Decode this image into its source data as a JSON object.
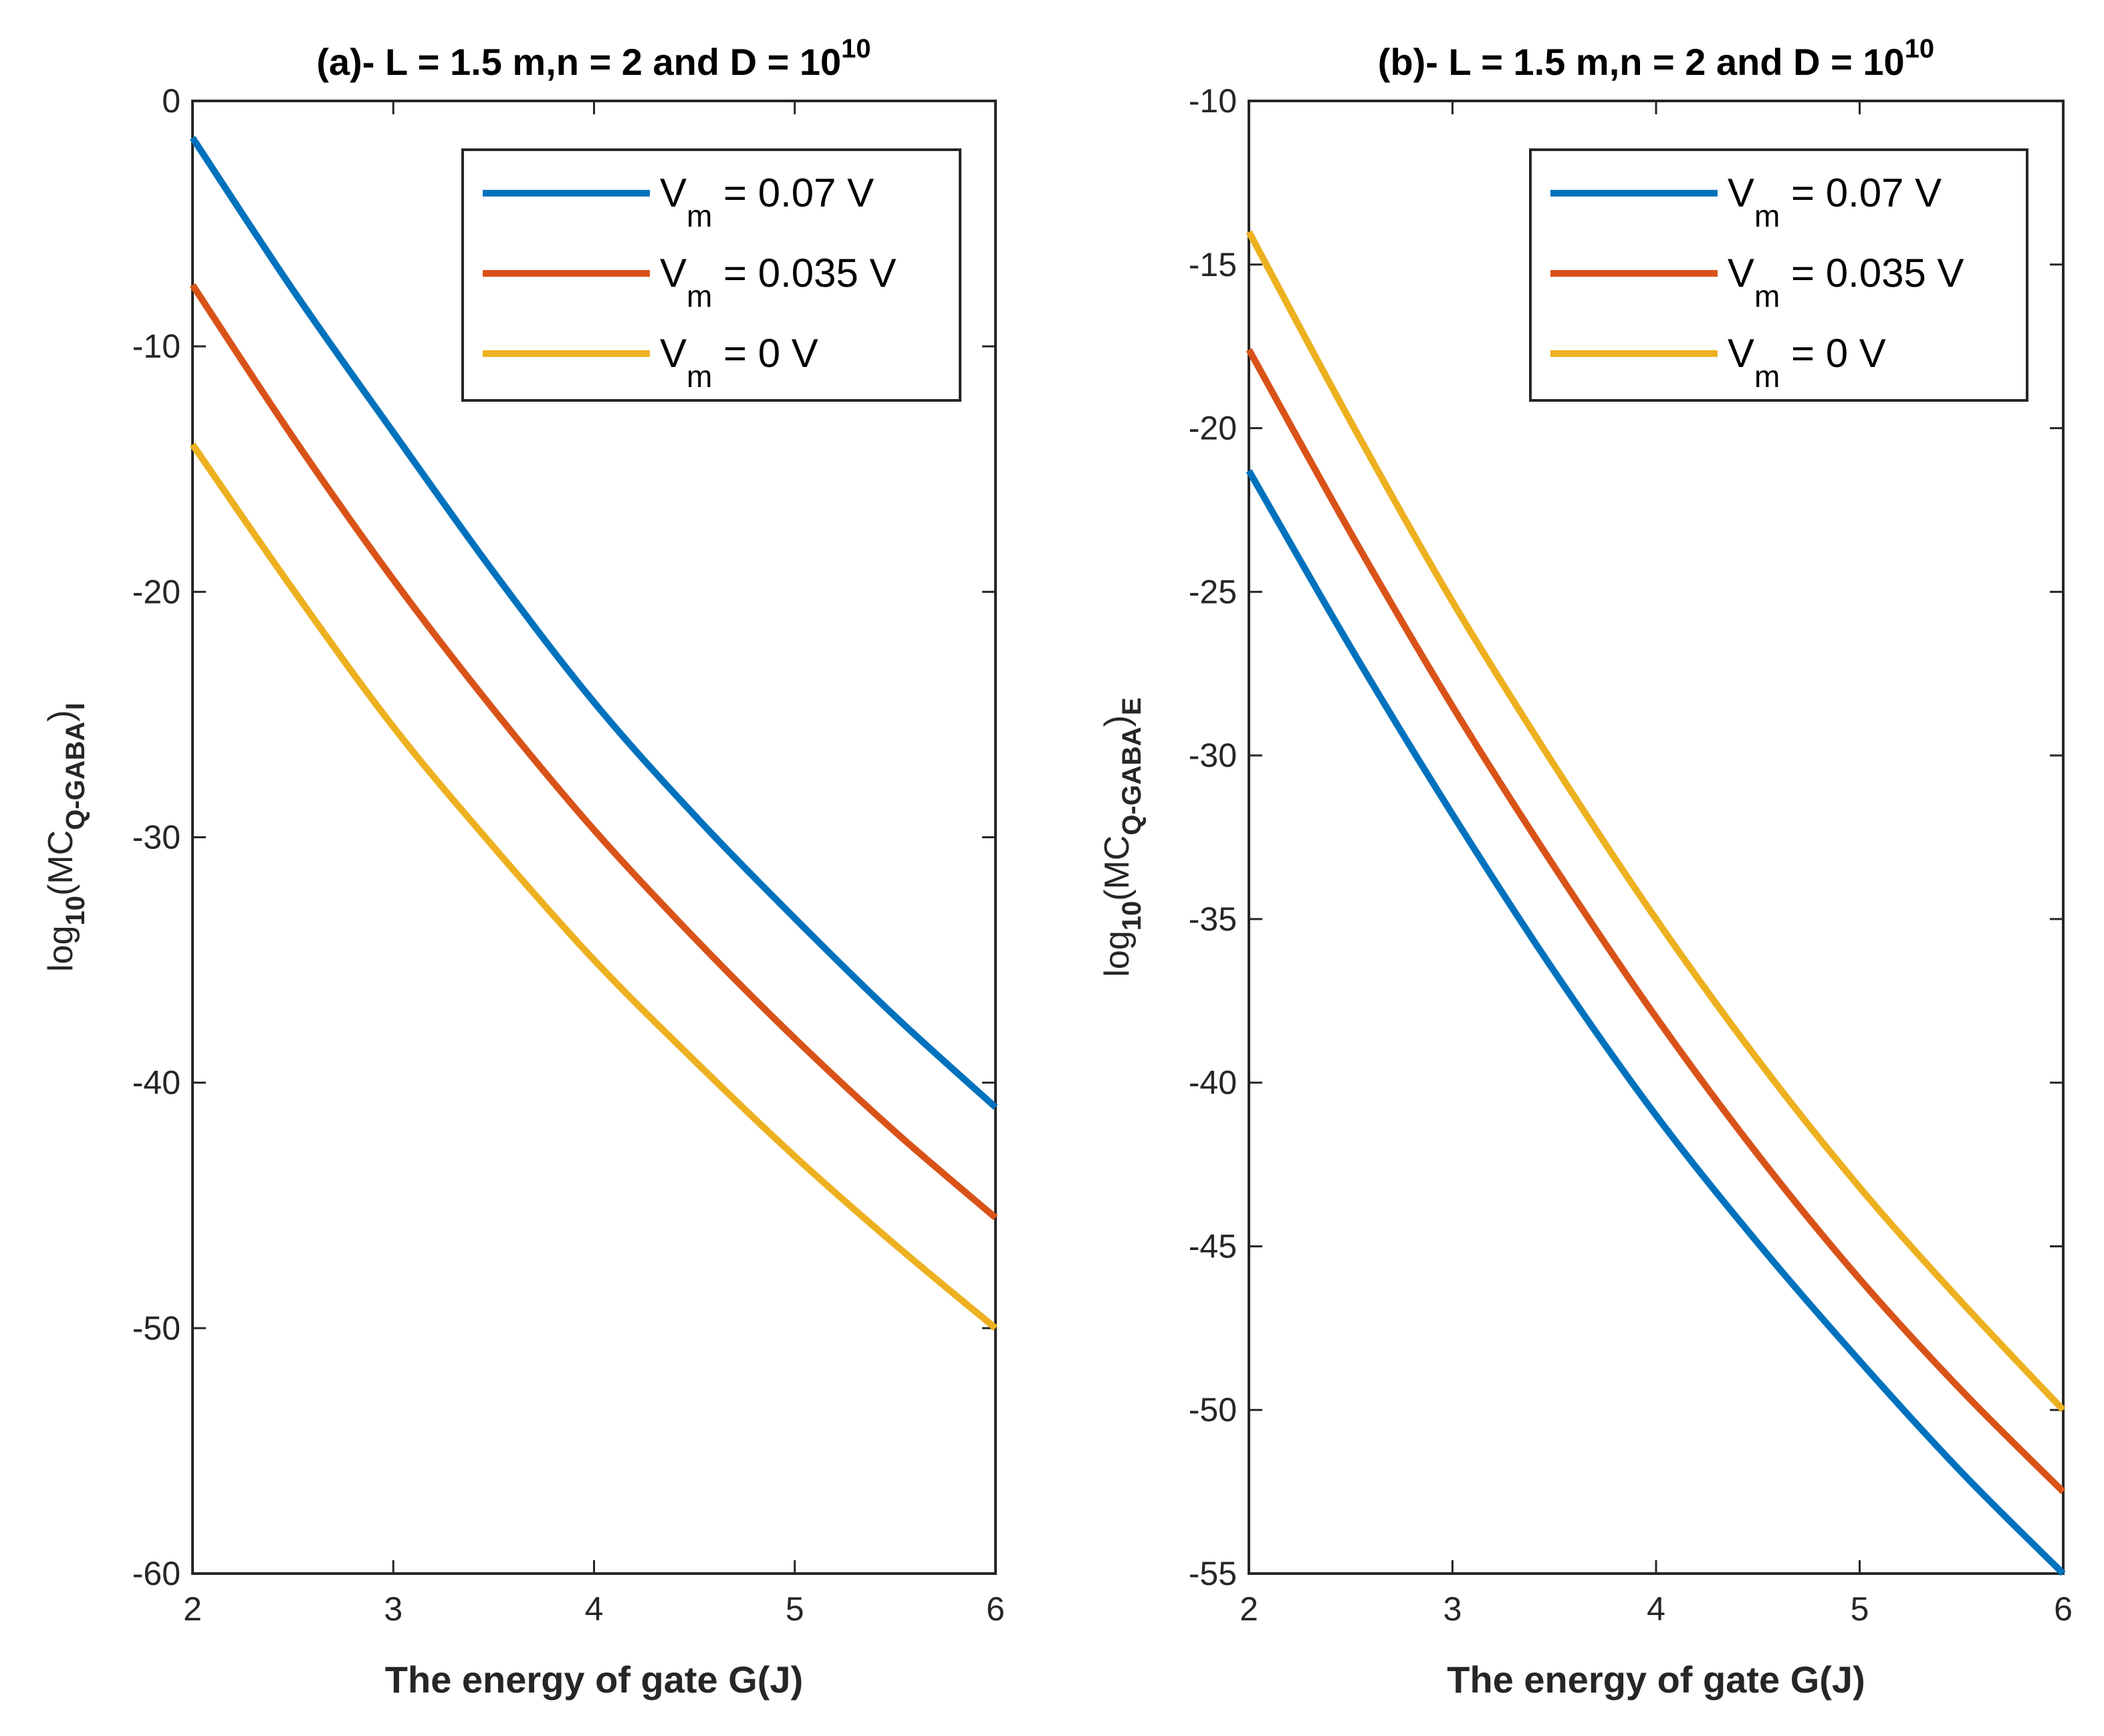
{
  "chart_data": [
    {
      "type": "line",
      "title": "(a)- L = 1.5 m,n = 2 and D = 10",
      "title_sup": "10",
      "xlabel": "The energy of gate G(J)",
      "ylabel": "log",
      "ylabel_sub1": "10",
      "ylabel_mid": "(MC",
      "ylabel_sub2": "Q-GABA",
      "ylabel_end": ")",
      "ylabel_sub3": "I",
      "xlim": [
        2,
        6
      ],
      "ylim": [
        -60,
        0
      ],
      "xticks": [
        2,
        3,
        4,
        5,
        6
      ],
      "yticks": [
        0,
        -10,
        -20,
        -30,
        -40,
        -50,
        -60
      ],
      "legend_position": "top-right",
      "x": [
        2,
        2.5,
        3,
        3.5,
        4,
        4.5,
        5,
        5.5,
        6
      ],
      "series": [
        {
          "name": "V",
          "sub": "m",
          "rest": " = 0.07 V",
          "color": "#0072BD",
          "values": [
            -1.5,
            -7.7,
            -13.5,
            -19.2,
            -24.5,
            -29.1,
            -33.3,
            -37.3,
            -41
          ]
        },
        {
          "name": "V",
          "sub": "m",
          "rest": " = 0.035 V",
          "color": "#D95319",
          "values": [
            -7.5,
            -13.7,
            -19.5,
            -24.8,
            -29.7,
            -34.1,
            -38.2,
            -42,
            -45.5
          ]
        },
        {
          "name": "V",
          "sub": "m",
          "rest": " = 0 V",
          "color": "#EDB120",
          "values": [
            -14,
            -19.9,
            -25.5,
            -30.4,
            -35,
            -39.1,
            -43,
            -46.6,
            -50
          ]
        }
      ]
    },
    {
      "type": "line",
      "title": "(b)- L = 1.5 m,n = 2 and D = 10",
      "title_sup": "10",
      "xlabel": "The energy of gate G(J)",
      "ylabel": "log",
      "ylabel_sub1": "10",
      "ylabel_mid": "(MC",
      "ylabel_sub2": "Q-GABA",
      "ylabel_end": ")",
      "ylabel_sub3": "E",
      "xlim": [
        2,
        6
      ],
      "ylim": [
        -55,
        -10
      ],
      "xticks": [
        2,
        3,
        4,
        5,
        6
      ],
      "yticks": [
        -10,
        -15,
        -20,
        -25,
        -30,
        -35,
        -40,
        -45,
        -50,
        -55
      ],
      "legend_position": "top-right",
      "x": [
        2,
        2.5,
        3,
        3.5,
        4,
        4.5,
        5,
        5.5,
        6
      ],
      "series": [
        {
          "name": "V",
          "sub": "m",
          "rest": " = 0.07 V",
          "color": "#0072BD",
          "values": [
            -21.3,
            -26.7,
            -31.8,
            -36.6,
            -41,
            -44.9,
            -48.5,
            -51.9,
            -55
          ]
        },
        {
          "name": "V",
          "sub": "m",
          "rest": " = 0.035 V",
          "color": "#D95319",
          "values": [
            -17.6,
            -23.2,
            -28.5,
            -33.4,
            -38,
            -42.2,
            -46,
            -49.4,
            -52.5
          ]
        },
        {
          "name": "V",
          "sub": "m",
          "rest": " = 0 V",
          "color": "#EDB120",
          "values": [
            -14,
            -19.8,
            -25.3,
            -30.3,
            -35,
            -39.3,
            -43.2,
            -46.7,
            -50
          ]
        }
      ]
    }
  ]
}
